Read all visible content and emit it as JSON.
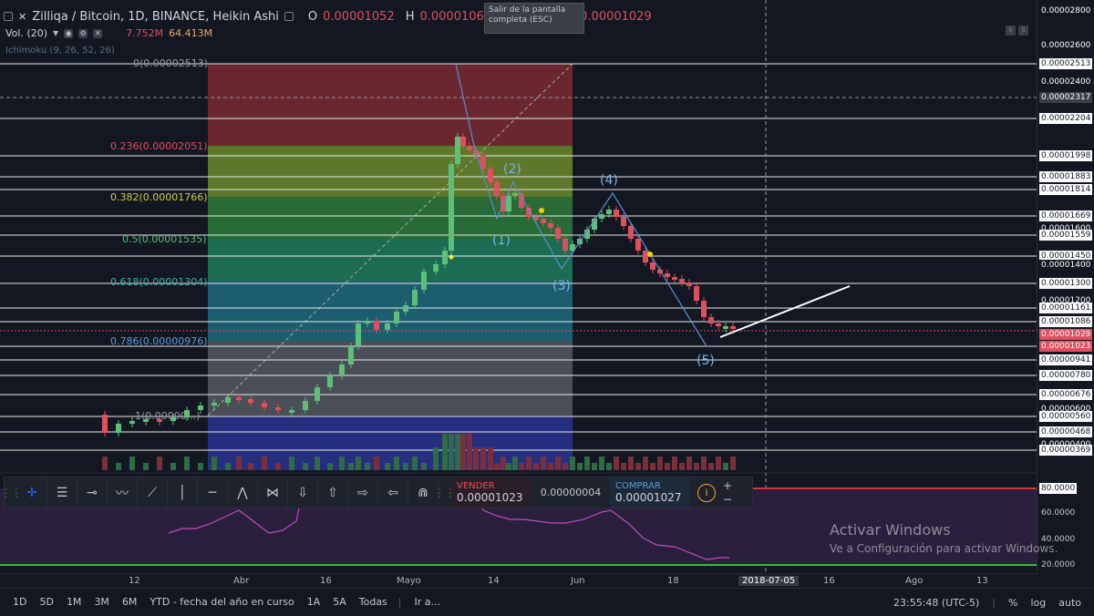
{
  "header": {
    "symbol_title": "Zilliqa / Bitcoin, 1D, BINANCE, Heikin Ashi",
    "open_label": "O",
    "open_value": "0.00001052",
    "high_label": "H",
    "high_value": "0.00001060",
    "close_label": "C",
    "close_value": "0.00001029",
    "volume_label": "Vol. (20)",
    "volume_value": "7.752M",
    "volume_ma_value": "64.413M",
    "ichimoku_label": "Ichimoku (9, 26, 52, 26)"
  },
  "tooltip": {
    "text": "Salir de la pantalla completa (ESC)"
  },
  "fib_labels": [
    {
      "text": "0(0.00002513)"
    },
    {
      "text": "0.236(0.00002051)"
    },
    {
      "text": "0.382(0.00001766)"
    },
    {
      "text": "0.5(0.00001535)"
    },
    {
      "text": "0.618(0.00001304)"
    },
    {
      "text": "0.786(0.00000976)"
    },
    {
      "text": "1(0.00000...)"
    }
  ],
  "wave_labels": [
    "(1)",
    "(2)",
    "(3)",
    "(4)",
    "(5)"
  ],
  "price_axis": {
    "labels": [
      "0.00002800",
      "0.00002600",
      "0.00002513",
      "0.00002400",
      "0.00002204",
      "0.00001998",
      "0.00001883",
      "0.00001814",
      "0.00001669",
      "0.00001600",
      "0.00001559",
      "0.00001450",
      "0.00001400",
      "0.00001300",
      "0.00001200",
      "0.00001161",
      "0.00001086",
      "0.00000941",
      "0.00000780",
      "0.00000676",
      "0.00000600",
      "0.00000560",
      "0.00000468",
      "0.00000400",
      "0.00000369"
    ],
    "crosshair_price": "0.00002317",
    "current_price": "0.00001029",
    "current_price_2": "0.00001023"
  },
  "indicator_axis": {
    "labels": [
      "80.0000",
      "60.0000",
      "40.0000",
      "20.0000"
    ]
  },
  "time_axis": {
    "labels": [
      "12",
      "Abr",
      "16",
      "Mayo",
      "14",
      "Jun",
      "18",
      "2018-07-05",
      "16",
      "Ago",
      "13"
    ]
  },
  "trade_panel": {
    "sell_label": "VENDER",
    "sell_price": "0.00001023",
    "spread": "0.00000004",
    "buy_label": "COMPRAR",
    "buy_price": "0.00001027",
    "plus": "+",
    "minus": "−"
  },
  "bottom_bar": {
    "ranges": [
      "1D",
      "5D",
      "1M",
      "3M",
      "6M",
      "YTD - fecha del año en curso",
      "1A",
      "5A",
      "Todas"
    ],
    "goto": "Ir a...",
    "clock": "23:55:48 (UTC-5)",
    "percent": "%",
    "log": "log",
    "auto": "auto"
  },
  "watermark": {
    "line1": "Activar Windows",
    "line2": "Ve a Configuración para activar Windows."
  },
  "colors": {
    "background": "#131722",
    "up_candle": "#5ebf7a",
    "down_candle": "#e04f5f",
    "wave_line": "#5a8fd0",
    "trend_line": "#ffffff"
  }
}
